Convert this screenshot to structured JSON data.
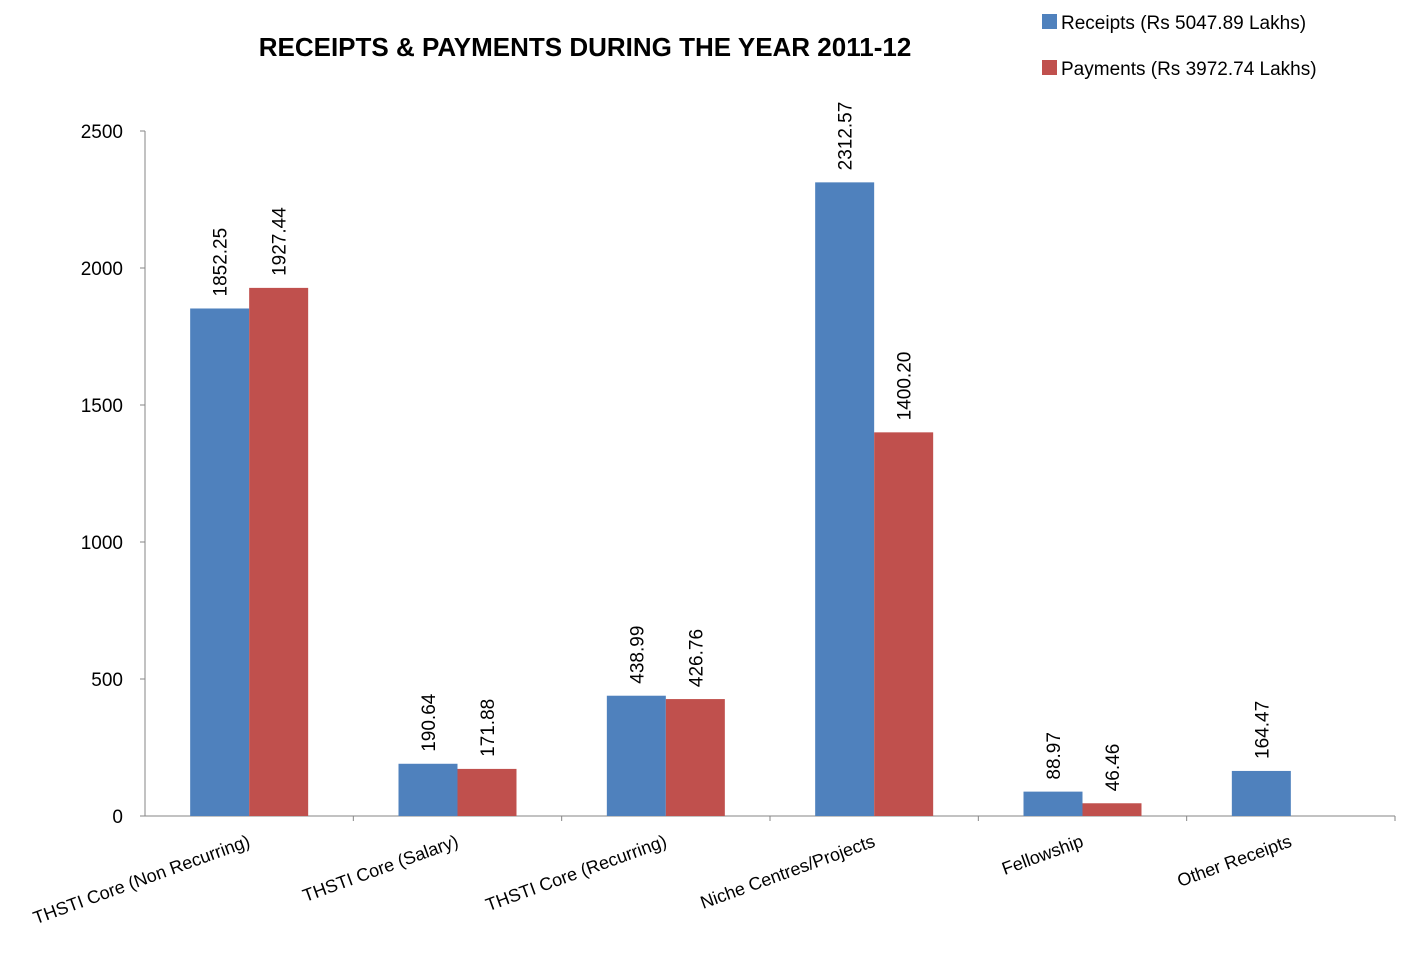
{
  "chart_data": {
    "type": "bar",
    "title": "RECEIPTS & PAYMENTS DURING THE YEAR 2011-12",
    "categories": [
      "THSTI Core (Non Recurring)",
      "THSTI Core (Salary)",
      "THSTI Core (Recurring)",
      "Niche Centres/Projects",
      "Fellowship",
      "Other Receipts"
    ],
    "series": [
      {
        "name": "Receipts (Rs 5047.89 Lakhs)",
        "color": "#4F81BD",
        "values": [
          1852.25,
          190.64,
          438.99,
          2312.57,
          88.97,
          164.47
        ],
        "labels": [
          "1852.25",
          "190.64",
          "438.99",
          "2312.57",
          "88.97",
          "164.47"
        ]
      },
      {
        "name": "Payments (Rs 3972.74 Lakhs)",
        "color": "#C0504D",
        "values": [
          1927.44,
          171.88,
          426.76,
          1400.2,
          46.46,
          null
        ],
        "labels": [
          "1927.44",
          "171.88",
          "426.76",
          "1400.20",
          "46.46",
          ""
        ]
      }
    ],
    "ylim": [
      0,
      2500
    ],
    "yticks": [
      0,
      500,
      1000,
      1500,
      2000,
      2500
    ],
    "xlabel": "",
    "ylabel": "",
    "grid": false,
    "legend_position": "top-right"
  }
}
